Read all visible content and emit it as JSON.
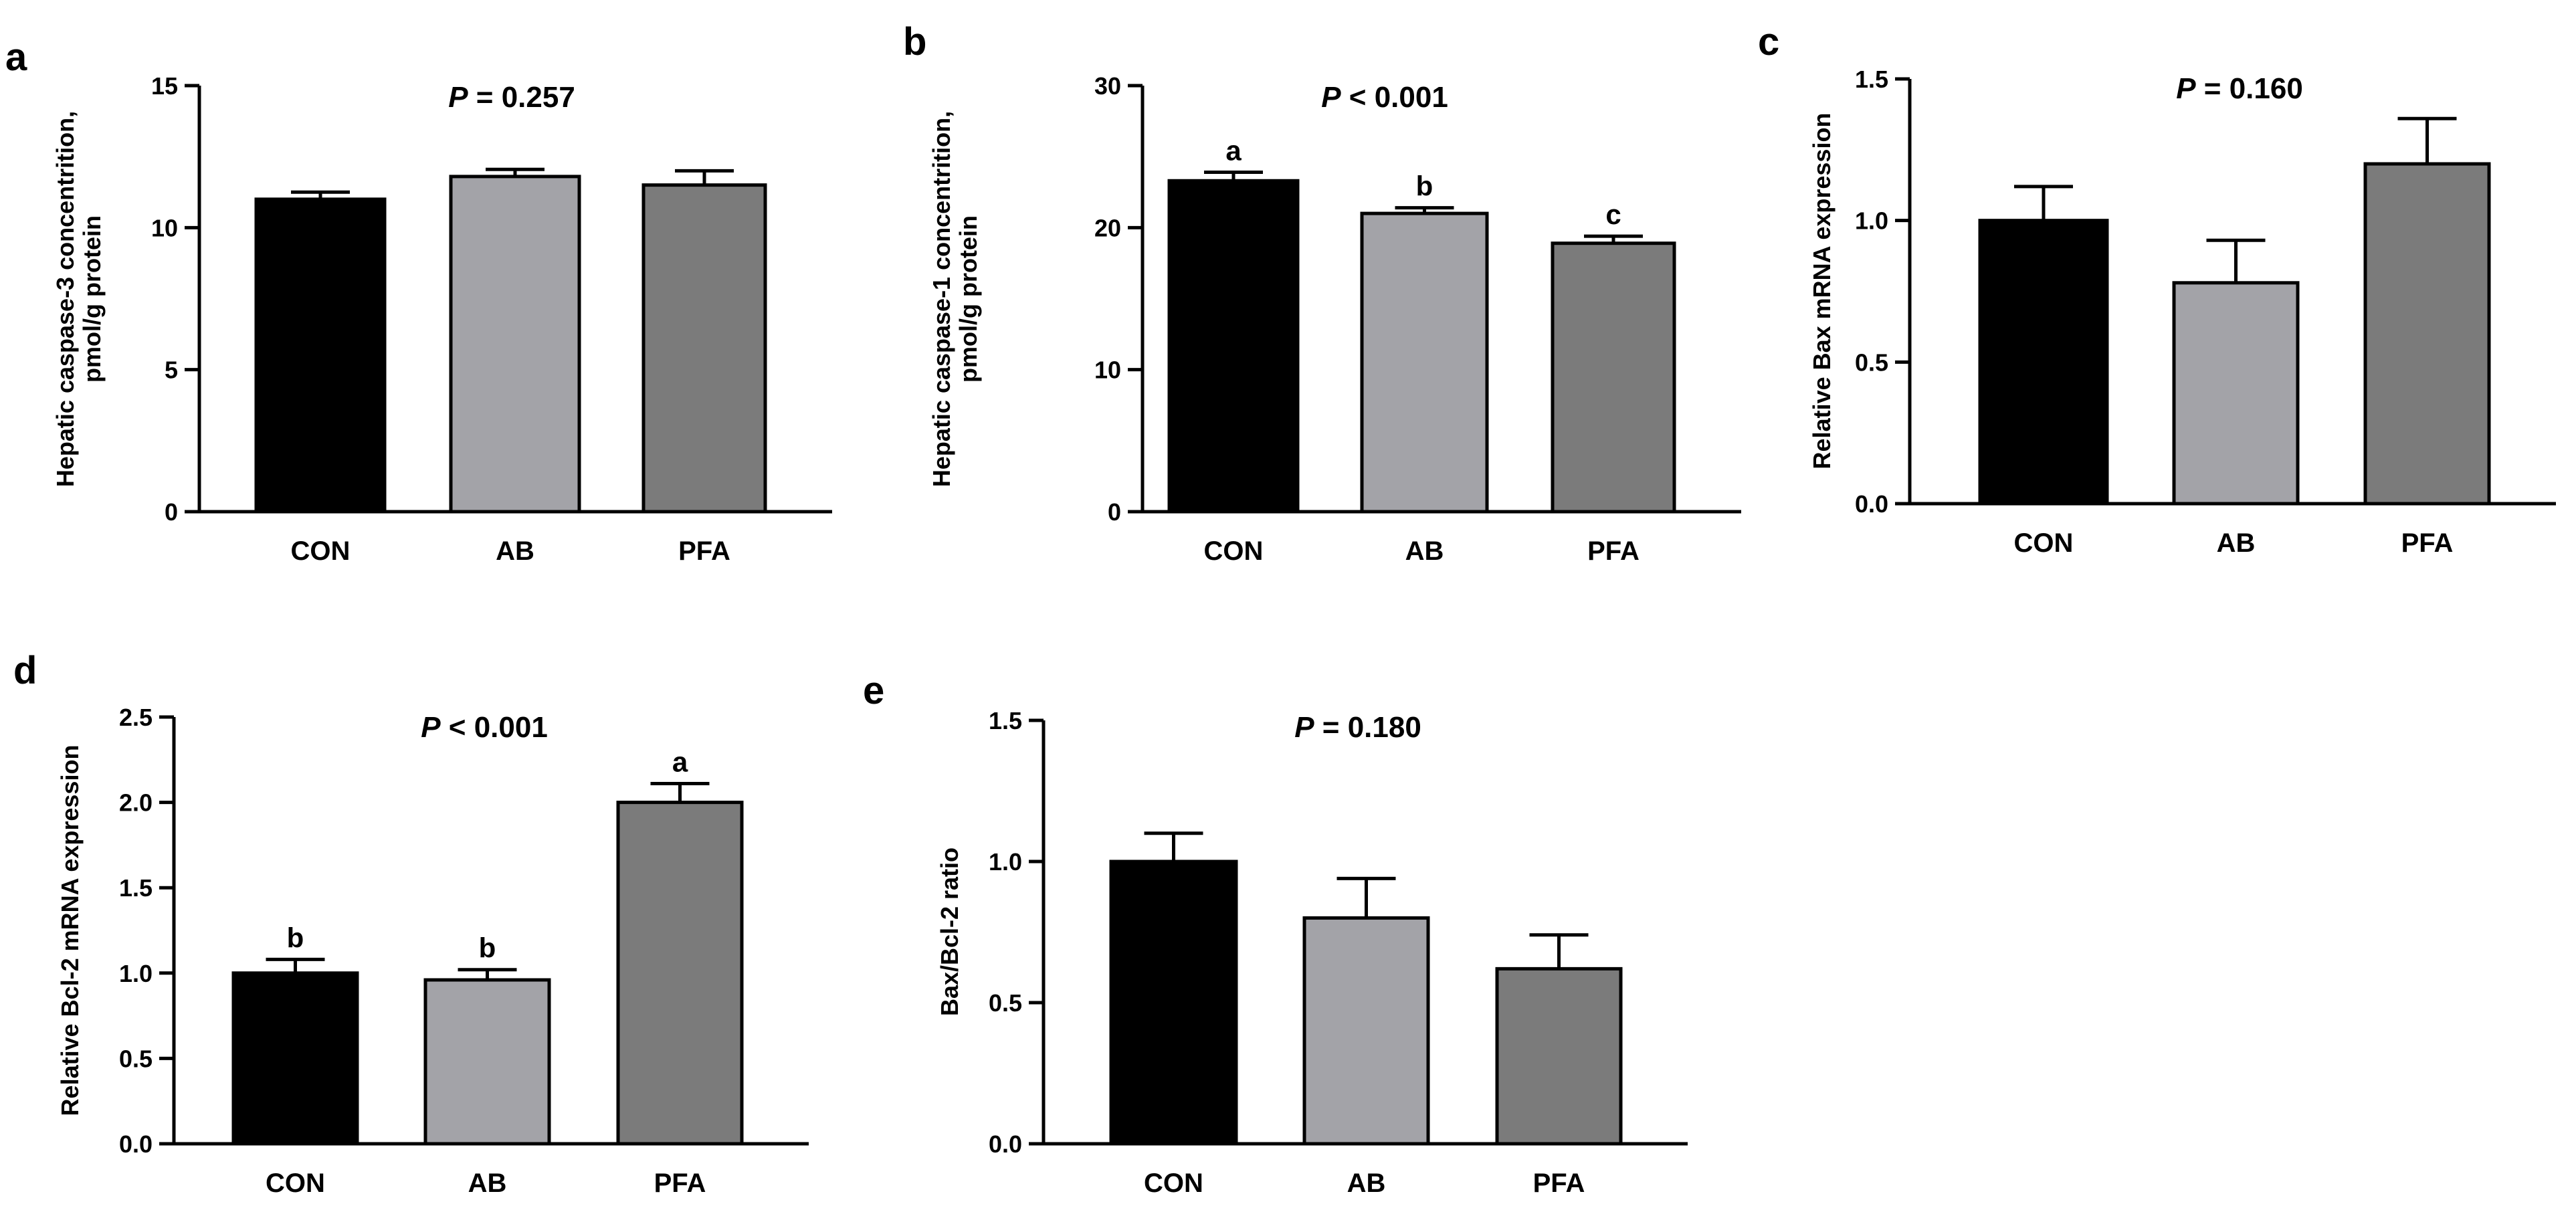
{
  "chart_data": [
    {
      "panel": "a",
      "type": "bar",
      "categories": [
        "CON",
        "AB",
        "PFA"
      ],
      "colors": [
        "#000000",
        "#a3a3a8",
        "#7b7b7b"
      ],
      "values": [
        11.0,
        11.8,
        11.5
      ],
      "errors": [
        0.25,
        0.25,
        0.5
      ],
      "ylabel": [
        "Hepatic caspase-3 concentrition,",
        "pmol/g protein"
      ],
      "ylim": [
        0,
        15
      ],
      "yticks": [
        0,
        5,
        10,
        15
      ],
      "ytick_labels": [
        "0",
        "5",
        "10",
        "15"
      ],
      "p_label": "P",
      "p_rest": " = 0.257",
      "letters": []
    },
    {
      "panel": "b",
      "type": "bar",
      "categories": [
        "CON",
        "AB",
        "PFA"
      ],
      "colors": [
        "#000000",
        "#a3a3a8",
        "#7b7b7b"
      ],
      "values": [
        23.3,
        21.0,
        18.9
      ],
      "errors": [
        0.6,
        0.4,
        0.5
      ],
      "ylabel": [
        "Hepatic caspase-1 concentrition,",
        "pmol/g protein"
      ],
      "ylim": [
        0,
        30
      ],
      "yticks": [
        0,
        10,
        20,
        30
      ],
      "ytick_labels": [
        "0",
        "10",
        "20",
        "30"
      ],
      "p_label": "P",
      "p_rest": " < 0.001",
      "letters": [
        "a",
        "b",
        "c"
      ]
    },
    {
      "panel": "c",
      "type": "bar",
      "categories": [
        "CON",
        "AB",
        "PFA"
      ],
      "colors": [
        "#000000",
        "#a3a3a8",
        "#7b7b7b"
      ],
      "values": [
        1.0,
        0.78,
        1.2
      ],
      "errors": [
        0.12,
        0.15,
        0.16
      ],
      "ylabel": [
        "Relative Bax mRNA expression"
      ],
      "ylim": [
        0,
        1.5
      ],
      "yticks": [
        0,
        0.5,
        1.0,
        1.5
      ],
      "ytick_labels": [
        "0.0",
        "0.5",
        "1.0",
        "1.5"
      ],
      "p_label": "P",
      "p_rest": " = 0.160",
      "letters": []
    },
    {
      "panel": "d",
      "type": "bar",
      "categories": [
        "CON",
        "AB",
        "PFA"
      ],
      "colors": [
        "#000000",
        "#a3a3a8",
        "#7b7b7b"
      ],
      "values": [
        1.0,
        0.96,
        2.0
      ],
      "errors": [
        0.08,
        0.06,
        0.11
      ],
      "ylabel": [
        "Relative Bcl-2 mRNA expression"
      ],
      "ylim": [
        0,
        2.5
      ],
      "yticks": [
        0,
        0.5,
        1.0,
        1.5,
        2.0,
        2.5
      ],
      "ytick_labels": [
        "0.0",
        "0.5",
        "1.0",
        "1.5",
        "2.0",
        "2.5"
      ],
      "p_label": "P",
      "p_rest": " < 0.001",
      "letters": [
        "b",
        "b",
        "a"
      ]
    },
    {
      "panel": "e",
      "type": "bar",
      "categories": [
        "CON",
        "AB",
        "PFA"
      ],
      "colors": [
        "#000000",
        "#a3a3a8",
        "#7b7b7b"
      ],
      "values": [
        1.0,
        0.8,
        0.62
      ],
      "errors": [
        0.1,
        0.14,
        0.12
      ],
      "ylabel": [
        "Bax/Bcl-2 ratio"
      ],
      "ylim": [
        0,
        1.5
      ],
      "yticks": [
        0,
        0.5,
        1.0,
        1.5
      ],
      "ytick_labels": [
        "0.0",
        "0.5",
        "1.0",
        "1.5"
      ],
      "p_label": "P",
      "p_rest": " = 0.180",
      "letters": []
    }
  ]
}
